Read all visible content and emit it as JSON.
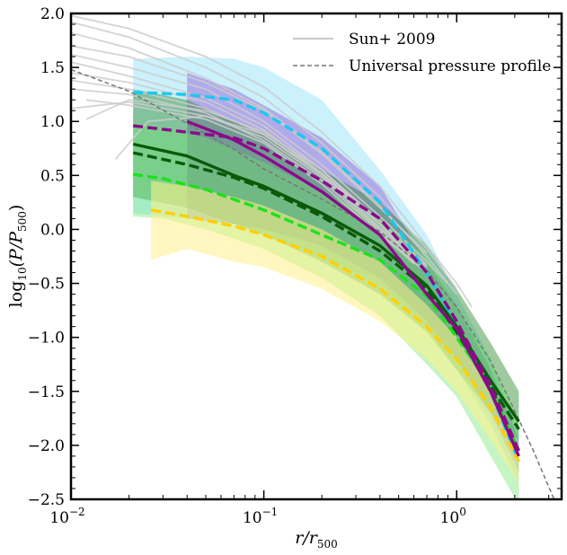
{
  "chart_data": {
    "type": "line",
    "xscale": "log",
    "xlim": [
      0.01,
      3.5
    ],
    "ylim": [
      -2.5,
      2.0
    ],
    "xlabel_main": "r/r",
    "xlabel_sub": "500",
    "ylabel_main": "log",
    "ylabel_sub1": "10",
    "ylabel_mid": "(P/P",
    "ylabel_sub2": "500",
    "ylabel_end": ")",
    "x_major_ticks": [
      {
        "value": 0.01,
        "base": "10",
        "exp": "−2"
      },
      {
        "value": 0.1,
        "base": "10",
        "exp": "−1"
      },
      {
        "value": 1,
        "base": "10",
        "exp": "0"
      }
    ],
    "y_ticks": [
      {
        "value": 2.0,
        "label": "2.0"
      },
      {
        "value": 1.5,
        "label": "1.5"
      },
      {
        "value": 1.0,
        "label": "1.0"
      },
      {
        "value": 0.5,
        "label": "0.5"
      },
      {
        "value": 0.0,
        "label": "0.0"
      },
      {
        "value": -0.5,
        "label": "−0.5"
      },
      {
        "value": -1.0,
        "label": "−1.0"
      },
      {
        "value": -1.5,
        "label": "−1.5"
      },
      {
        "value": -2.0,
        "label": "−2.0"
      },
      {
        "value": -2.5,
        "label": "−2.5"
      }
    ],
    "legend": {
      "position": "top-right",
      "entries": [
        {
          "label": "Sun+ 2009",
          "color": "#c8c8c8",
          "style": "solid"
        },
        {
          "label": "Universal pressure profile",
          "color": "#777777",
          "style": "dashed"
        }
      ]
    },
    "upp": {
      "name": "Universal pressure profile",
      "color": "#777777",
      "x": [
        0.01,
        0.02,
        0.04,
        0.07,
        0.1,
        0.2,
        0.4,
        0.7,
        1.0,
        1.5,
        2.0,
        2.5,
        3.2
      ],
      "y": [
        1.48,
        1.28,
        0.98,
        0.74,
        0.56,
        0.28,
        -0.02,
        -0.38,
        -0.72,
        -1.22,
        -1.68,
        -2.05,
        -2.5
      ]
    },
    "sun2009": {
      "name": "Sun+ 2009",
      "color": "#cccccc",
      "lines": [
        {
          "x": [
            0.01,
            0.02,
            0.05,
            0.1,
            0.2,
            0.4,
            0.7,
            1.0,
            1.2
          ],
          "y": [
            1.98,
            1.86,
            1.6,
            1.32,
            0.9,
            0.4,
            -0.15,
            -0.5,
            -0.72
          ]
        },
        {
          "x": [
            0.01,
            0.02,
            0.05,
            0.1,
            0.2,
            0.4,
            0.7,
            1.0
          ],
          "y": [
            1.92,
            1.78,
            1.5,
            1.22,
            0.8,
            0.3,
            -0.18,
            -0.55
          ]
        },
        {
          "x": [
            0.01,
            0.02,
            0.05,
            0.1,
            0.2,
            0.4,
            0.7,
            1.0
          ],
          "y": [
            1.82,
            1.68,
            1.4,
            1.12,
            0.72,
            0.22,
            -0.25,
            -0.6
          ]
        },
        {
          "x": [
            0.01,
            0.02,
            0.05,
            0.1,
            0.2,
            0.4,
            0.7
          ],
          "y": [
            1.7,
            1.6,
            1.36,
            1.1,
            0.7,
            0.2,
            -0.22
          ]
        },
        {
          "x": [
            0.01,
            0.02,
            0.05,
            0.1,
            0.2,
            0.4,
            0.7,
            0.9
          ],
          "y": [
            1.62,
            1.5,
            1.3,
            1.0,
            0.6,
            0.12,
            -0.3,
            -0.5
          ]
        },
        {
          "x": [
            0.01,
            0.02,
            0.05,
            0.1,
            0.2,
            0.4,
            0.7
          ],
          "y": [
            1.55,
            1.42,
            1.22,
            0.96,
            0.55,
            0.08,
            -0.33
          ]
        },
        {
          "x": [
            0.01,
            0.02,
            0.05,
            0.1,
            0.2,
            0.4,
            0.6
          ],
          "y": [
            1.45,
            1.36,
            1.18,
            0.92,
            0.52,
            0.05,
            -0.28
          ]
        },
        {
          "x": [
            0.01,
            0.02,
            0.05,
            0.1,
            0.2,
            0.4,
            0.7
          ],
          "y": [
            1.38,
            1.3,
            1.12,
            0.88,
            0.5,
            0.02,
            -0.38
          ]
        },
        {
          "x": [
            0.01,
            0.02,
            0.05,
            0.1,
            0.2,
            0.4,
            0.6
          ],
          "y": [
            1.3,
            1.25,
            1.08,
            0.82,
            0.45,
            -0.02,
            -0.32
          ]
        },
        {
          "x": [
            0.012,
            0.02,
            0.05,
            0.1,
            0.2,
            0.4,
            0.7
          ],
          "y": [
            1.2,
            1.15,
            1.02,
            0.8,
            0.42,
            -0.05,
            -0.4
          ]
        },
        {
          "x": [
            0.01,
            0.02,
            0.05,
            0.1,
            0.2,
            0.4,
            0.6
          ],
          "y": [
            1.12,
            1.18,
            1.05,
            0.85,
            0.48,
            0.0,
            -0.3
          ]
        },
        {
          "x": [
            0.012,
            0.02,
            0.05,
            0.1,
            0.2,
            0.4,
            0.7
          ],
          "y": [
            1.02,
            1.2,
            1.1,
            0.9,
            0.55,
            0.05,
            -0.35
          ]
        },
        {
          "x": [
            0.017,
            0.025,
            0.05,
            0.1,
            0.2,
            0.4
          ],
          "y": [
            0.65,
            1.0,
            1.05,
            0.88,
            0.52,
            0.05
          ]
        }
      ]
    },
    "series": [
      {
        "name": "cyan-dashed",
        "color": "#1ac8f0",
        "style": "dashed",
        "x": [
          0.021,
          0.04,
          0.07,
          0.1,
          0.2,
          0.4,
          0.7,
          1.0,
          1.5,
          2.1
        ],
        "y": [
          1.27,
          1.25,
          1.2,
          1.08,
          0.75,
          0.25,
          -0.4,
          -0.9,
          -1.5,
          -2.15
        ],
        "band_lower": [
          0.15,
          0.1,
          0.05,
          -0.05,
          -0.25,
          -0.5,
          -0.9,
          -1.3,
          -1.8,
          -2.35
        ],
        "band_upper": [
          1.58,
          1.6,
          1.58,
          1.5,
          1.2,
          0.55,
          -0.05,
          -0.6,
          -1.2,
          -1.9
        ],
        "band_color": "#4fd0f5",
        "band_opacity": 0.3
      },
      {
        "name": "purple-solid",
        "color": "#8b0a8b",
        "style": "solid",
        "x": [
          0.04,
          0.07,
          0.1,
          0.2,
          0.4,
          0.7,
          1.0,
          1.5,
          2.1
        ],
        "y": [
          1.0,
          0.83,
          0.68,
          0.35,
          -0.05,
          -0.6,
          -0.92,
          -1.5,
          -2.1
        ],
        "band_lower": [
          0.1,
          0.05,
          0.0,
          -0.15,
          -0.45,
          -0.85,
          -1.2,
          -1.7,
          -2.25
        ],
        "band_upper": [
          1.45,
          1.3,
          1.15,
          0.85,
          0.4,
          -0.3,
          -0.7,
          -1.3,
          -1.95
        ],
        "band_color": "#8a3fd0",
        "band_opacity": 0.4
      },
      {
        "name": "purple-dashed",
        "color": "#8b0a8b",
        "style": "dashed",
        "x": [
          0.021,
          0.04,
          0.07,
          0.1,
          0.2,
          0.4,
          0.7,
          1.0,
          1.5,
          2.1
        ],
        "y": [
          0.96,
          0.9,
          0.85,
          0.75,
          0.45,
          0.1,
          -0.4,
          -0.85,
          -1.45,
          -2.05
        ]
      },
      {
        "name": "darkgreen-solid",
        "color": "#0a5a0a",
        "style": "solid",
        "x": [
          0.021,
          0.04,
          0.07,
          0.1,
          0.2,
          0.4,
          0.7,
          1.0,
          1.5,
          2.1
        ],
        "y": [
          0.79,
          0.68,
          0.5,
          0.4,
          0.15,
          -0.15,
          -0.52,
          -0.9,
          -1.4,
          -1.78
        ],
        "band_lower": [
          0.3,
          0.2,
          0.05,
          -0.05,
          -0.3,
          -0.6,
          -0.95,
          -1.3,
          -1.7,
          -1.95
        ],
        "band_upper": [
          1.3,
          1.2,
          1.0,
          0.9,
          0.55,
          0.25,
          -0.15,
          -0.55,
          -1.05,
          -1.5
        ],
        "band_color": "#2a8a2a",
        "band_opacity": 0.45
      },
      {
        "name": "darkgreen-dashed",
        "color": "#0a5a0a",
        "style": "dashed",
        "x": [
          0.021,
          0.04,
          0.07,
          0.1,
          0.2,
          0.4,
          0.7,
          1.0,
          1.5,
          2.1
        ],
        "y": [
          0.71,
          0.6,
          0.48,
          0.38,
          0.12,
          -0.2,
          -0.55,
          -0.95,
          -1.45,
          -1.85
        ]
      },
      {
        "name": "green-dashed",
        "color": "#1ee01e",
        "style": "dashed",
        "x": [
          0.021,
          0.03,
          0.05,
          0.1,
          0.2,
          0.4,
          0.7,
          1.0,
          1.5,
          2.1
        ],
        "y": [
          0.51,
          0.47,
          0.37,
          0.18,
          -0.05,
          -0.28,
          -0.62,
          -1.0,
          -1.45,
          -2.05
        ],
        "band_lower": [
          0.12,
          0.1,
          0.0,
          -0.18,
          -0.45,
          -0.8,
          -1.25,
          -1.55,
          -2.1,
          -2.55
        ],
        "band_upper": [
          1.0,
          0.95,
          0.85,
          0.62,
          0.35,
          0.1,
          -0.25,
          -0.7,
          -1.2,
          -1.75
        ],
        "band_color": "#6fe56f",
        "band_opacity": 0.4
      },
      {
        "name": "yellow-dashed",
        "color": "#ffd000",
        "style": "dashed",
        "x": [
          0.026,
          0.04,
          0.07,
          0.1,
          0.2,
          0.4,
          0.7,
          1.0,
          1.5,
          2.1
        ],
        "y": [
          0.18,
          0.12,
          0.03,
          -0.05,
          -0.25,
          -0.55,
          -0.9,
          -1.2,
          -1.65,
          -2.15
        ],
        "band_lower": [
          -0.28,
          -0.18,
          -0.3,
          -0.35,
          -0.55,
          -0.85,
          -1.2,
          -1.5,
          -1.95,
          -2.35
        ],
        "band_upper": [
          0.45,
          0.4,
          0.3,
          0.22,
          0.0,
          -0.3,
          -0.7,
          -1.0,
          -1.5,
          -2.0
        ],
        "band_color": "#fff08a",
        "band_opacity": 0.55
      }
    ]
  }
}
